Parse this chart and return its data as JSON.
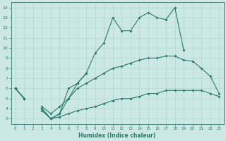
{
  "xlabel": "Humidex (Indice chaleur)",
  "bg_color": "#cce8e4",
  "line_color": "#2a7a6a",
  "grid_color": "#b0d8d0",
  "x_values": [
    0,
    1,
    2,
    3,
    4,
    5,
    6,
    7,
    8,
    9,
    10,
    11,
    12,
    13,
    14,
    15,
    16,
    17,
    18,
    19,
    20,
    21,
    22,
    23
  ],
  "line1": [
    6.0,
    5.0,
    null,
    4.0,
    3.0,
    3.5,
    6.0,
    6.5,
    7.5,
    9.5,
    10.5,
    13.0,
    11.7,
    11.7,
    13.0,
    13.5,
    13.0,
    12.8,
    14.0,
    9.8,
    null,
    null,
    null,
    null
  ],
  "line2": [
    6.0,
    5.0,
    null,
    4.0,
    3.0,
    3.5,
    5.0,
    6.5,
    7.5,
    null,
    null,
    null,
    null,
    null,
    null,
    null,
    null,
    null,
    null,
    null,
    null,
    null,
    null,
    null
  ],
  "line3": [
    6.0,
    5.0,
    null,
    4.2,
    3.5,
    4.2,
    5.0,
    6.0,
    6.5,
    7.0,
    7.5,
    8.0,
    8.2,
    8.5,
    8.8,
    9.0,
    9.0,
    9.2,
    9.2,
    8.8,
    8.7,
    8.0,
    7.2,
    5.5
  ],
  "line4": [
    6.0,
    5.0,
    null,
    3.8,
    3.0,
    3.2,
    3.5,
    3.8,
    4.0,
    4.2,
    4.5,
    4.8,
    5.0,
    5.0,
    5.2,
    5.5,
    5.5,
    5.8,
    5.8,
    5.8,
    5.8,
    5.8,
    5.5,
    5.2
  ],
  "ylim": [
    2.5,
    14.5
  ],
  "xlim": [
    -0.5,
    23.5
  ],
  "yticks": [
    3,
    4,
    5,
    6,
    7,
    8,
    9,
    10,
    11,
    12,
    13,
    14
  ],
  "xticks": [
    0,
    1,
    2,
    3,
    4,
    5,
    6,
    7,
    8,
    9,
    10,
    11,
    12,
    13,
    14,
    15,
    16,
    17,
    18,
    19,
    20,
    21,
    22,
    23
  ]
}
